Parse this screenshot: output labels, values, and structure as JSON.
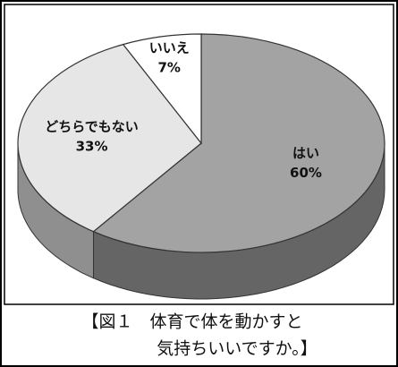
{
  "chart_data": {
    "type": "pie3d",
    "categories": [
      "はい",
      "どちらでもない",
      "いいえ"
    ],
    "values": [
      60,
      33,
      7
    ],
    "value_labels": [
      "60%",
      "33%",
      "7%"
    ],
    "colors": [
      "#a3a3a3",
      "#e6e6e6",
      "#ffffff"
    ],
    "caption": [
      "【図１　体育で体を動かすと",
      "気持ちいいですか。】"
    ]
  }
}
